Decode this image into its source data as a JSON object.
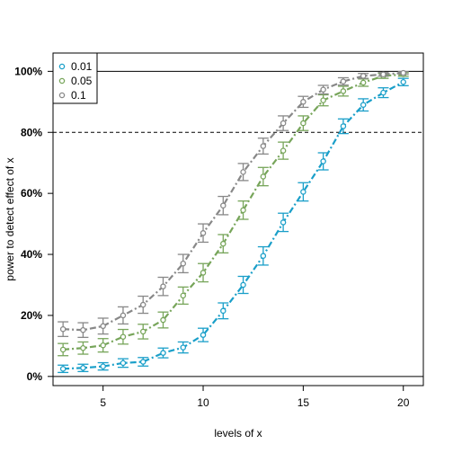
{
  "chart_data": {
    "type": "line",
    "title": "",
    "xlabel": "levels of x",
    "ylabel": "power to detect effect of x",
    "xlim": [
      2.5,
      21
    ],
    "ylim": [
      -0.03,
      1.06
    ],
    "x_ticks": [
      5,
      10,
      15,
      20
    ],
    "y_ticks": [
      0,
      0.2,
      0.4,
      0.6,
      0.8,
      1.0
    ],
    "y_tick_labels": [
      "0%",
      "20%",
      "40%",
      "60%",
      "80%",
      "100%"
    ],
    "reference_lines": [
      {
        "y": 0.0,
        "style": "solid"
      },
      {
        "y": 0.8,
        "style": "dashed"
      },
      {
        "y": 1.0,
        "style": "solid"
      }
    ],
    "grid": false,
    "legend_position": "top-left",
    "x": [
      3,
      4,
      5,
      6,
      7,
      8,
      9,
      10,
      11,
      12,
      13,
      14,
      15,
      16,
      17,
      18,
      19,
      20
    ],
    "series": [
      {
        "name": "0.01",
        "color": "#1a9fc9",
        "values": [
          0.025,
          0.028,
          0.033,
          0.044,
          0.048,
          0.077,
          0.095,
          0.136,
          0.215,
          0.3,
          0.395,
          0.505,
          0.605,
          0.705,
          0.82,
          0.89,
          0.93,
          0.965
        ],
        "err": [
          0.012,
          0.012,
          0.012,
          0.014,
          0.014,
          0.016,
          0.018,
          0.022,
          0.026,
          0.028,
          0.03,
          0.03,
          0.03,
          0.028,
          0.024,
          0.02,
          0.016,
          0.012
        ]
      },
      {
        "name": "0.05",
        "color": "#77a55a",
        "values": [
          0.088,
          0.093,
          0.102,
          0.13,
          0.147,
          0.185,
          0.265,
          0.34,
          0.435,
          0.545,
          0.655,
          0.74,
          0.83,
          0.905,
          0.935,
          0.963,
          0.985,
          0.99
        ],
        "err": [
          0.02,
          0.02,
          0.022,
          0.024,
          0.024,
          0.026,
          0.028,
          0.03,
          0.03,
          0.03,
          0.03,
          0.028,
          0.024,
          0.018,
          0.016,
          0.012,
          0.008,
          0.006
        ]
      },
      {
        "name": "0.1",
        "color": "#888888",
        "values": [
          0.155,
          0.152,
          0.165,
          0.2,
          0.235,
          0.295,
          0.37,
          0.47,
          0.56,
          0.67,
          0.755,
          0.83,
          0.9,
          0.94,
          0.967,
          0.985,
          0.99,
          0.995
        ],
        "err": [
          0.024,
          0.024,
          0.026,
          0.028,
          0.028,
          0.03,
          0.03,
          0.03,
          0.03,
          0.028,
          0.026,
          0.024,
          0.018,
          0.014,
          0.012,
          0.008,
          0.006,
          0.004
        ]
      }
    ]
  }
}
